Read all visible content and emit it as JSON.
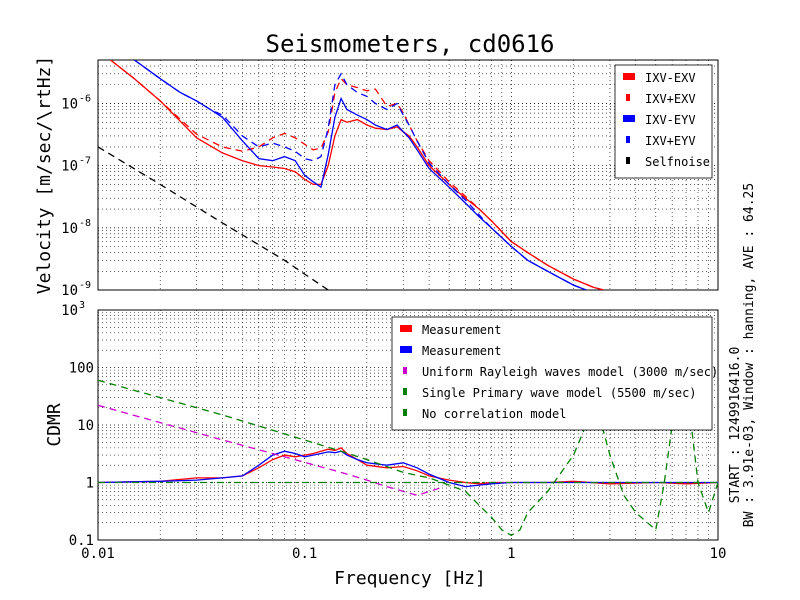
{
  "title": "Seismometers, cd0616",
  "side_text": {
    "line1": "START : 1249916416.0",
    "line2": "BW : 3.91e-03, Window : hanning, AVE : 64.25"
  },
  "chart_data": [
    {
      "type": "line",
      "xscale": "log",
      "yscale": "log",
      "xlim": [
        0.01,
        10
      ],
      "ylim": [
        1e-09,
        5e-06
      ],
      "xlabel": "",
      "ylabel": "Velocity [m/sec/\\rtHz]",
      "yticks": [
        {
          "v": 1e-09,
          "m": "10",
          "e": "-9"
        },
        {
          "v": 1e-08,
          "m": "10",
          "e": "-8"
        },
        {
          "v": 1e-07,
          "m": "10",
          "e": "-7"
        },
        {
          "v": 1e-06,
          "m": "10",
          "e": "-6"
        }
      ],
      "grid": true,
      "legend_position": "top-right",
      "series": [
        {
          "name": "IXV-EXV",
          "color": "#ff0000",
          "dash": "solid",
          "x": [
            0.0115,
            0.015,
            0.02,
            0.03,
            0.04,
            0.05,
            0.06,
            0.07,
            0.08,
            0.09,
            0.1,
            0.11,
            0.12,
            0.13,
            0.14,
            0.15,
            0.16,
            0.18,
            0.2,
            0.22,
            0.25,
            0.28,
            0.3,
            0.32,
            0.35,
            0.4,
            0.5,
            0.6,
            0.7,
            0.8,
            1.0,
            1.2,
            1.5,
            2.0,
            2.5,
            2.8
          ],
          "y": [
            5e-06,
            2.5e-06,
            1.1e-06,
            2.8e-07,
            1.6e-07,
            1.2e-07,
            1e-07,
            9.5e-08,
            9e-08,
            8e-08,
            6e-08,
            5e-08,
            5e-08,
            1e-07,
            3e-07,
            5.5e-07,
            5e-07,
            5.5e-07,
            4.5e-07,
            4e-07,
            3.8e-07,
            4.2e-07,
            3.5e-07,
            3e-07,
            2e-07,
            1e-07,
            5e-08,
            3e-08,
            2e-08,
            1.3e-08,
            6e-09,
            4e-09,
            2.5e-09,
            1.5e-09,
            1.1e-09,
            1e-09
          ]
        },
        {
          "name": "IXV+EXV",
          "color": "#ff0000",
          "dash": "dashed",
          "x": [
            0.0115,
            0.015,
            0.02,
            0.03,
            0.04,
            0.05,
            0.06,
            0.07,
            0.08,
            0.09,
            0.1,
            0.11,
            0.12,
            0.13,
            0.14,
            0.15,
            0.16,
            0.18,
            0.2,
            0.22,
            0.25,
            0.28,
            0.3,
            0.32,
            0.35,
            0.4,
            0.5,
            0.6,
            0.7,
            0.8,
            1.0,
            1.2,
            1.5,
            2.0,
            2.5,
            2.8
          ],
          "y": [
            5e-06,
            2.5e-06,
            1.1e-06,
            3.2e-07,
            2e-07,
            1.7e-07,
            2e-07,
            2.8e-07,
            3.3e-07,
            2.8e-07,
            2.2e-07,
            1.8e-07,
            1.9e-07,
            3.5e-07,
            1.5e-06,
            2.5e-06,
            2e-06,
            1.8e-06,
            1.6e-06,
            1.7e-06,
            9e-07,
            1e-06,
            7e-07,
            4.5e-07,
            2.5e-07,
            1.2e-07,
            5.5e-08,
            3.2e-08,
            2e-08,
            1.3e-08,
            6e-09,
            4e-09,
            2.5e-09,
            1.5e-09,
            1.1e-09,
            1e-09
          ]
        },
        {
          "name": "IXV-EYV",
          "color": "#0000ff",
          "dash": "solid",
          "x": [
            0.015,
            0.02,
            0.025,
            0.03,
            0.035,
            0.04,
            0.05,
            0.06,
            0.07,
            0.08,
            0.09,
            0.1,
            0.11,
            0.12,
            0.13,
            0.14,
            0.15,
            0.16,
            0.18,
            0.2,
            0.22,
            0.25,
            0.28,
            0.3,
            0.32,
            0.35,
            0.4,
            0.5,
            0.6,
            0.7,
            0.8,
            1.0,
            1.2,
            1.5,
            2.0,
            2.3
          ],
          "y": [
            5e-06,
            2.5e-06,
            1.5e-06,
            1.1e-06,
            8e-07,
            6e-07,
            2.5e-07,
            1.3e-07,
            1.2e-07,
            1.4e-07,
            1.2e-07,
            7e-08,
            5.5e-08,
            4.5e-08,
            1.5e-07,
            6e-07,
            1.2e-06,
            8e-07,
            6.5e-07,
            5.5e-07,
            4.5e-07,
            3.8e-07,
            4.5e-07,
            3.5e-07,
            2.8e-07,
            1.8e-07,
            9e-08,
            4.5e-08,
            2.5e-08,
            1.5e-08,
            1e-08,
            5e-09,
            3e-09,
            2e-09,
            1.2e-09,
            1e-09
          ]
        },
        {
          "name": "IXV+EYV",
          "color": "#0000ff",
          "dash": "dashed",
          "x": [
            0.015,
            0.02,
            0.025,
            0.03,
            0.035,
            0.04,
            0.05,
            0.06,
            0.07,
            0.08,
            0.09,
            0.1,
            0.11,
            0.12,
            0.13,
            0.14,
            0.15,
            0.16,
            0.18,
            0.2,
            0.22,
            0.25,
            0.28,
            0.3,
            0.32,
            0.35,
            0.4,
            0.5,
            0.6,
            0.7,
            0.8,
            1.0,
            1.2,
            1.5,
            2.0,
            2.3
          ],
          "y": [
            5e-06,
            2.5e-06,
            1.5e-06,
            1.1e-06,
            8e-07,
            6.5e-07,
            3e-07,
            2e-07,
            2.3e-07,
            2e-07,
            1.7e-07,
            1.3e-07,
            1.2e-07,
            1.4e-07,
            4e-07,
            2e-06,
            3e-06,
            2e-06,
            1.5e-06,
            1.3e-06,
            1e-06,
            8e-07,
            1e-06,
            6.5e-07,
            4.5e-07,
            2.5e-07,
            1.1e-07,
            5e-08,
            2.8e-08,
            1.6e-08,
            1e-08,
            5e-09,
            3e-09,
            2e-09,
            1.2e-09,
            1e-09
          ]
        },
        {
          "name": "Selfnoise",
          "color": "#000000",
          "dash": "dashed",
          "x": [
            0.01,
            0.02,
            0.04,
            0.08,
            0.1,
            0.13
          ],
          "y": [
            2e-07,
            5e-08,
            1.2e-08,
            3e-09,
            1.8e-09,
            1e-09
          ]
        }
      ]
    },
    {
      "type": "line",
      "xscale": "log",
      "yscale": "log",
      "xlim": [
        0.01,
        10
      ],
      "ylim": [
        0.1,
        1000
      ],
      "xlabel": "Frequency [Hz]",
      "ylabel": "CDMR",
      "xticks": [
        {
          "v": 0.01,
          "label": "0.01"
        },
        {
          "v": 0.1,
          "label": "0.1"
        },
        {
          "v": 1,
          "label": "1"
        },
        {
          "v": 10,
          "label": "10"
        }
      ],
      "yticks": [
        {
          "v": 0.1,
          "label": "0.1"
        },
        {
          "v": 1,
          "label": "1"
        },
        {
          "v": 10,
          "label": "10"
        },
        {
          "v": 100,
          "label": "100"
        },
        {
          "v": 1000,
          "m": "10",
          "e": "3"
        }
      ],
      "grid": true,
      "legend_position": "top-right",
      "series": [
        {
          "name": "Measurement",
          "color": "#ff0000",
          "dash": "solid",
          "x": [
            0.01,
            0.02,
            0.03,
            0.04,
            0.05,
            0.06,
            0.07,
            0.08,
            0.09,
            0.1,
            0.11,
            0.12,
            0.13,
            0.14,
            0.15,
            0.16,
            0.18,
            0.2,
            0.25,
            0.3,
            0.35,
            0.4,
            0.5,
            0.6,
            0.7,
            0.8,
            1.0,
            1.5,
            2.0,
            3.0,
            5.0,
            7.0,
            10.0
          ],
          "y": [
            1.0,
            1.05,
            1.2,
            1.2,
            1.3,
            1.8,
            2.5,
            3.0,
            2.8,
            3.0,
            3.2,
            3.5,
            3.8,
            3.6,
            4.0,
            3.2,
            2.5,
            2.0,
            1.8,
            1.9,
            1.6,
            1.3,
            1.1,
            1.0,
            0.95,
            1.0,
            1.0,
            1.0,
            1.05,
            0.95,
            1.0,
            0.95,
            1.0
          ]
        },
        {
          "name": "Measurement",
          "color": "#0000ff",
          "dash": "solid",
          "x": [
            0.01,
            0.02,
            0.03,
            0.04,
            0.05,
            0.06,
            0.07,
            0.08,
            0.09,
            0.1,
            0.11,
            0.12,
            0.13,
            0.14,
            0.15,
            0.16,
            0.18,
            0.2,
            0.25,
            0.3,
            0.35,
            0.4,
            0.5,
            0.6,
            0.7,
            0.8,
            1.0,
            1.5,
            2.0,
            3.0,
            5.0,
            7.0,
            10.0
          ],
          "y": [
            1.0,
            1.05,
            1.1,
            1.2,
            1.3,
            2.0,
            3.0,
            3.5,
            3.2,
            2.8,
            3.0,
            3.2,
            3.4,
            3.3,
            3.5,
            3.0,
            2.5,
            2.2,
            2.0,
            2.2,
            1.8,
            1.4,
            1.0,
            0.85,
            0.9,
            0.95,
            1.0,
            1.0,
            1.0,
            1.0,
            1.0,
            1.0,
            1.0
          ]
        },
        {
          "name": "Uniform Rayleigh waves model (3000 m/sec)",
          "color": "#cc00cc",
          "dash": "dashed",
          "x": [
            0.01,
            0.02,
            0.04,
            0.08,
            0.15,
            0.2,
            0.25,
            0.3,
            0.35,
            0.45
          ],
          "y": [
            22,
            11,
            5.5,
            2.8,
            1.5,
            1.1,
            0.85,
            0.7,
            0.6,
            0.8
          ]
        },
        {
          "name": "Single Primary wave model (5500 m/sec)",
          "color": "#008000",
          "dash": "dashed",
          "x": [
            0.01,
            0.02,
            0.04,
            0.08,
            0.15,
            0.2,
            0.3,
            0.4,
            0.5,
            0.6,
            0.7,
            0.8,
            0.9,
            1.0,
            1.1,
            1.2,
            1.5,
            2.0,
            2.3,
            2.6,
            3.0,
            3.5,
            4.0,
            5.0,
            5.5,
            6.0,
            7.0,
            8.0,
            9.0,
            10.0
          ],
          "y": [
            60,
            30,
            15,
            7,
            3.5,
            2.5,
            1.5,
            1.2,
            0.9,
            0.7,
            0.4,
            0.25,
            0.15,
            0.12,
            0.15,
            0.3,
            0.7,
            3.0,
            10,
            20,
            3,
            0.6,
            0.3,
            0.15,
            1.0,
            10,
            60,
            1.0,
            0.3,
            1.0
          ]
        },
        {
          "name": "No correlation model",
          "color": "#008000",
          "dash": "dashdot",
          "x": [
            0.01,
            10
          ],
          "y": [
            1,
            1
          ]
        }
      ]
    }
  ]
}
